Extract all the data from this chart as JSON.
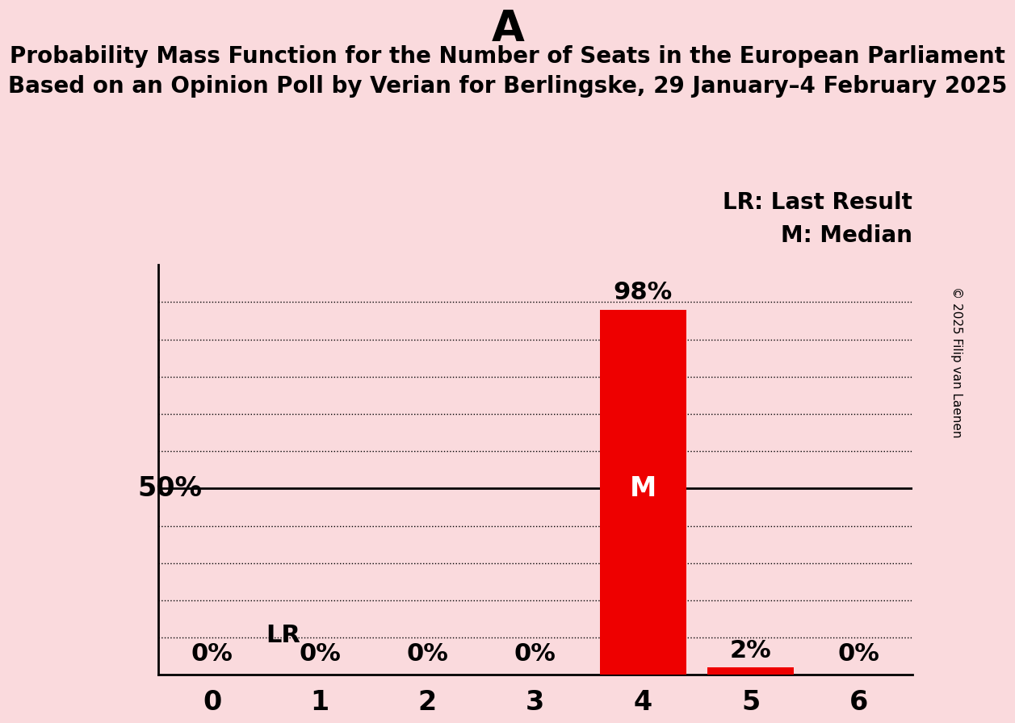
{
  "title_letter": "A",
  "title_line1": "Probability Mass Function for the Number of Seats in the European Parliament",
  "title_line2": "Based on an Opinion Poll by Verian for Berlingske, 29 January–4 February 2025",
  "categories": [
    0,
    1,
    2,
    3,
    4,
    5,
    6
  ],
  "values": [
    0,
    0,
    0,
    0,
    98,
    2,
    0
  ],
  "bar_color": "#ee0000",
  "background_color": "#fadadd",
  "ylabel_50": "50%",
  "legend_lr": "LR: Last Result",
  "legend_m": "M: Median",
  "median_value": 4,
  "last_result_value": 4,
  "copyright": "© 2025 Filip van Laenen",
  "xlim": [
    -0.5,
    6.5
  ],
  "ylim": [
    0,
    110
  ],
  "dotted_yticks": [
    10,
    20,
    30,
    40,
    60,
    70,
    80,
    90,
    100
  ],
  "solid_ytick": 50,
  "title_fontsize": 38,
  "subtitle_fontsize": 20,
  "label_fontsize": 24,
  "tick_fontsize": 24,
  "annotation_fontsize": 22,
  "legend_fontsize": 20,
  "copyright_fontsize": 11
}
